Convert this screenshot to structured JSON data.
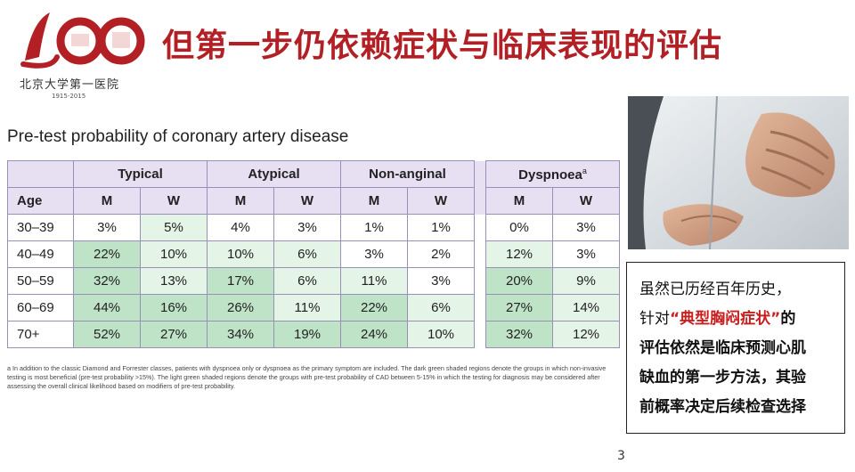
{
  "logo": {
    "numeral": "100",
    "text": "北京大学第一医院",
    "years": "1915-2015"
  },
  "title": "但第一步仍依赖症状与临床表现的评估",
  "subtitle": "Pre-test probability of coronary artery disease",
  "table": {
    "groups": [
      "Typical",
      "Atypical",
      "Non-anginal",
      "Dyspnoea"
    ],
    "dyspnoea_superscript": "a",
    "age_header": "Age",
    "sex_labels": [
      "M",
      "W",
      "M",
      "W",
      "M",
      "W",
      "M",
      "W"
    ],
    "rows": [
      {
        "age": "30–39",
        "cells": [
          "3%",
          "5%",
          "4%",
          "3%",
          "1%",
          "1%",
          "0%",
          "3%"
        ]
      },
      {
        "age": "40–49",
        "cells": [
          "22%",
          "10%",
          "10%",
          "6%",
          "3%",
          "2%",
          "12%",
          "3%"
        ]
      },
      {
        "age": "50–59",
        "cells": [
          "32%",
          "13%",
          "17%",
          "6%",
          "11%",
          "3%",
          "20%",
          "9%"
        ]
      },
      {
        "age": "60–69",
        "cells": [
          "44%",
          "16%",
          "26%",
          "11%",
          "22%",
          "6%",
          "27%",
          "14%"
        ]
      },
      {
        "age": "70+",
        "cells": [
          "52%",
          "27%",
          "34%",
          "19%",
          "24%",
          "10%",
          "32%",
          "12%"
        ]
      }
    ]
  },
  "footnote": "a In addition to the classic Diamond and Forrester classes, patients with dyspnoea only or dyspnoea as the primary symptom are included. The dark green shaded regions denote the groups in which non-invasive testing is most beneficial (pre-test probability >15%). The light green shaded regions denote the groups with pre-test probability of CAD between 5-15% in which the testing for diagnosis may be considered after assessing the overall clinical likelihood based on modifiers of pre-test probability.",
  "textbox": {
    "line1": "虽然已历经百年历史，",
    "line2_pre": "针对",
    "line2_highlight": "“典型胸闷症状”",
    "line2_post": "的",
    "line3": "评估依然是临床预测心肌",
    "line4": "缺血的第一步方法，其验",
    "line5": "前概率决定后续检查选择"
  },
  "page_number": "3",
  "colors": {
    "title_red": "#b21f24",
    "header_purple": "#e7e0f3",
    "dark_green": "#bfe3c7",
    "light_green": "#e4f4e7"
  }
}
